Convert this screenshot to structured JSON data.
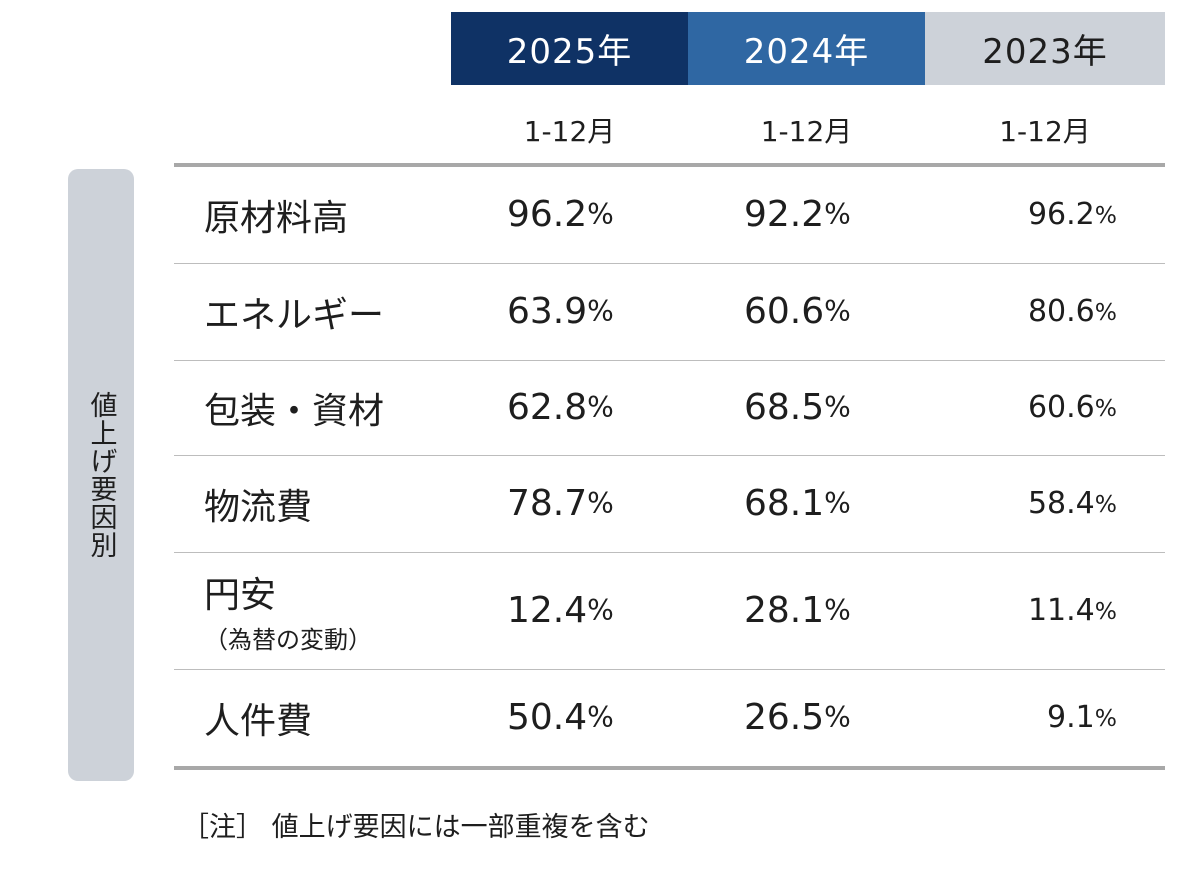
{
  "side_label": "値上げ要因別",
  "headers": {
    "years": [
      "2025年",
      "2024年",
      "2023年"
    ],
    "periods": [
      "1-12月",
      "1-12月",
      "1-12月"
    ]
  },
  "chart_data": {
    "type": "table",
    "columns": [
      "2025年 1-12月",
      "2024年 1-12月",
      "2023年 1-12月"
    ],
    "unit": "%",
    "rows": [
      {
        "label": "原材料高",
        "sublabel": "",
        "values": [
          "96.2",
          "92.2",
          "96.2"
        ]
      },
      {
        "label": "エネルギー",
        "sublabel": "",
        "values": [
          "63.9",
          "60.6",
          "80.6"
        ]
      },
      {
        "label": "包装・資材",
        "sublabel": "",
        "values": [
          "62.8",
          "68.5",
          "60.6"
        ]
      },
      {
        "label": "物流費",
        "sublabel": "",
        "values": [
          "78.7",
          "68.1",
          "58.4"
        ]
      },
      {
        "label": "円安",
        "sublabel": "（為替の変動）",
        "values": [
          "12.4",
          "28.1",
          "11.4"
        ]
      },
      {
        "label": "人件費",
        "sublabel": "",
        "values": [
          "50.4",
          "26.5",
          "9.1"
        ]
      }
    ]
  },
  "note": "［注］ 値上げ要因には一部重複を含む",
  "colors": {
    "header_2025": "#0f3265",
    "header_2024": "#2f67a3",
    "header_2023": "#cdd2d9",
    "side_label_bg": "#cdd2d9",
    "rule": "#a8a8a8"
  }
}
